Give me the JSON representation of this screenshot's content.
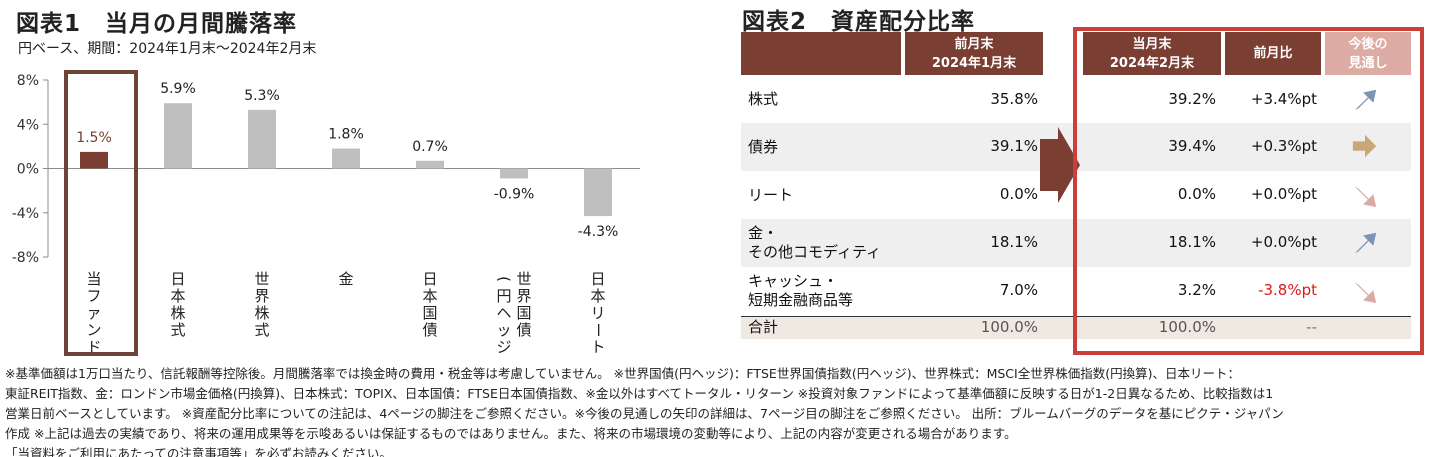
{
  "chart": {
    "title": "図表1　当月の月間騰落率",
    "subtitle": "円ベース、期間：2024年1月末～2024年2月末"
  },
  "chart_data": {
    "type": "bar",
    "title": "図表1　当月の月間騰落率",
    "subtitle": "円ベース、期間：2024年1月末～2024年2月末",
    "categories": [
      "当ファンド",
      "日本株式",
      "世界株式",
      "金",
      "日本国債",
      "世界国債(円ヘッジ)",
      "日本リート"
    ],
    "category_lines": [
      [
        "当ファンド"
      ],
      [
        "日本株式"
      ],
      [
        "世界株式"
      ],
      [
        "金"
      ],
      [
        "日本国債"
      ],
      [
        "世界国債",
        "(円ヘッジ)"
      ],
      [
        "日本リート"
      ]
    ],
    "values": [
      1.5,
      5.9,
      5.3,
      1.8,
      0.7,
      -0.9,
      -4.3
    ],
    "value_labels": [
      "1.5%",
      "5.9%",
      "5.3%",
      "1.8%",
      "0.7%",
      "-0.9%",
      "-4.3%"
    ],
    "ylim": [
      -8,
      8
    ],
    "yticks": [
      8,
      4,
      0,
      -4,
      -8
    ],
    "ytick_labels": [
      "8%",
      "4%",
      "0%",
      "-4%",
      "-8%"
    ],
    "highlight_index": 0,
    "colors": {
      "highlight": "#7a3e33",
      "other": "#bfbfbf",
      "highlight_label": "#7a3e33"
    },
    "grid": false,
    "legend": "none"
  },
  "table": {
    "title": "図表2　資産配分比率",
    "headers": {
      "prev": [
        "前月末",
        "2024年1月末"
      ],
      "curr": [
        "当月末",
        "2024年2月末"
      ],
      "change": [
        "前月比"
      ],
      "outlook": [
        "今後の",
        "見通し"
      ]
    },
    "rows": [
      {
        "label": [
          "株式"
        ],
        "prev": "35.8%",
        "curr": "39.2%",
        "change": "+3.4%pt",
        "negative": false,
        "outlook_icon": "arrow-up-right-icon",
        "outlook_color": "#7c95b5"
      },
      {
        "label": [
          "債券"
        ],
        "prev": "39.1%",
        "curr": "39.4%",
        "change": "+0.3%pt",
        "negative": false,
        "outlook_icon": "arrow-right-icon",
        "outlook_color": "#c8a878"
      },
      {
        "label": [
          "リート"
        ],
        "prev": "0.0%",
        "curr": "0.0%",
        "change": "+0.0%pt",
        "negative": false,
        "outlook_icon": "arrow-down-right-icon",
        "outlook_color": "#dcaca4"
      },
      {
        "label": [
          "金・",
          "その他コモディティ"
        ],
        "prev": "18.1%",
        "curr": "18.1%",
        "change": "+0.0%pt",
        "negative": false,
        "outlook_icon": "arrow-up-right-icon",
        "outlook_color": "#7c95b5"
      },
      {
        "label": [
          "キャッシュ・",
          "短期金融商品等"
        ],
        "prev": "7.0%",
        "curr": "3.2%",
        "change": "-3.8%pt",
        "negative": true,
        "outlook_icon": "arrow-down-right-icon",
        "outlook_color": "#dcaca4"
      }
    ],
    "total": {
      "label": "合計",
      "prev": "100.0%",
      "curr": "100.0%",
      "change": "--"
    },
    "colors": {
      "header": "#7a3e33",
      "header_light": "#dcaca4",
      "frame": "#c9403a",
      "negative": "#e01818"
    }
  },
  "notes": [
    "※基準価額は1万口当たり、信託報酬等控除後。月間騰落率では換金時の費用・税金等は考慮していません。 ※世界国債(円ヘッジ)：FTSE世界国債指数(円ヘッジ)、世界株式：MSCI全世界株価指数(円換算)、日本リート：",
    "東証REIT指数、金：ロンドン市場金価格(円換算)、日本株式：TOPIX、日本国債：FTSE日本国債指数、※金以外はすべてトータル・リターン ※投資対象ファンドによって基準価額に反映する日が1-2日異なるため、比較指数は1",
    "営業日前ベースとしています。 ※資産配分比率についての注記は、4ページの脚注をご参照ください。※今後の見通しの矢印の詳細は、7ページ目の脚注をご参照ください。 出所：ブルームバーグのデータを基にピクテ・ジャパン",
    "作成 ※上記は過去の実績であり、将来の運用成果等を示唆あるいは保証するものではありません。また、将来の市場環境の変動等により、上記の内容が変更される場合があります。",
    "「当資料をご利用にあたっての注意事項等」を必ずお読みください。"
  ]
}
